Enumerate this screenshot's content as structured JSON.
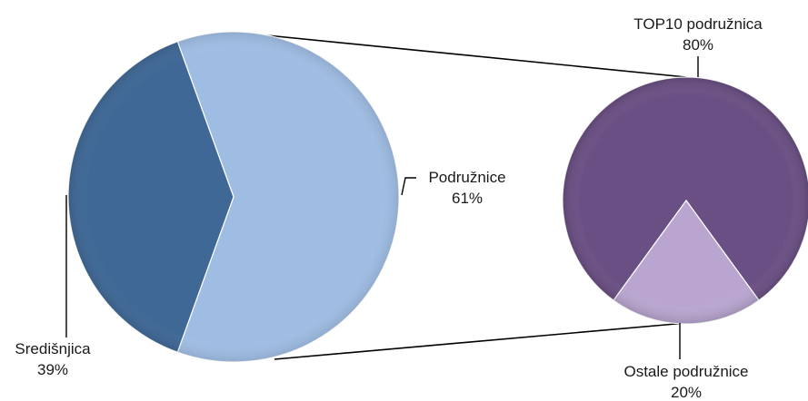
{
  "chart_data": {
    "type": "pie",
    "variant": "bar-of-pie (pie of pie)",
    "main_pie": {
      "slices": [
        {
          "label": "Središnjica",
          "value": 39,
          "value_label": "39%",
          "color": "#3f6896"
        },
        {
          "label": "Podružnice",
          "value": 61,
          "value_label": "61%",
          "color": "#9fbde3"
        }
      ]
    },
    "secondary_pie": {
      "parent_slice": "Podružnice",
      "slices": [
        {
          "label": "TOP10 podružnica",
          "value": 80,
          "value_label": "80%",
          "color": "#6a4f84"
        },
        {
          "label": "Ostale podružnice",
          "value": 20,
          "value_label": "20%",
          "color": "#b9a5d0"
        }
      ]
    },
    "title": "",
    "legend": "none",
    "connector_color": "#000000"
  }
}
